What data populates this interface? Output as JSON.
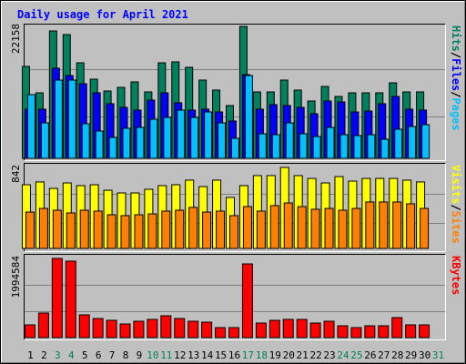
{
  "chart_data": [
    {
      "type": "bar",
      "title": "Daily usage for April 2021",
      "legend_separator": "/",
      "ylim": [
        0,
        22158
      ],
      "yticks": [
        22158
      ],
      "series": [
        {
          "name": "Hits",
          "color": "#00805c",
          "values": [
            15434,
            11002,
            21394,
            20783,
            16045,
            13295,
            11308,
            11920,
            12836,
            11155,
            16045,
            16198,
            15282,
            13142,
            11461,
            8863,
            22158,
            11155,
            11155,
            13142,
            11461,
            9627,
            12072,
            10391,
            11002,
            11002,
            11002,
            12683,
            11155,
            11155,
            null
          ]
        },
        {
          "name": "Files",
          "color": "#0000ff",
          "values": [
            8252,
            8252,
            15129,
            13906,
            12531,
            11002,
            9169,
            8558,
            8099,
            9780,
            11002,
            9322,
            8099,
            8252,
            7794,
            6265,
            14059,
            8252,
            9016,
            8863,
            8558,
            7488,
            9627,
            9475,
            7794,
            7946,
            9169,
            10391,
            8252,
            8099,
            null
          ]
        },
        {
          "name": "Pages",
          "color": "#00c0ff",
          "values": [
            10697,
            5960,
            13142,
            13142,
            5807,
            4584,
            3515,
            5043,
            5196,
            6571,
            6877,
            8099,
            6877,
            7794,
            5960,
            3362,
            13906,
            4126,
            3973,
            5960,
            4126,
            3667,
            5196,
            3973,
            3820,
            3973,
            3209,
            4890,
            5349,
            5654,
            null
          ]
        }
      ]
    },
    {
      "type": "bar",
      "legend_separator": "/",
      "ylim": [
        0,
        842
      ],
      "yticks": [
        842
      ],
      "series": [
        {
          "name": "Visits",
          "color": "#ffff00",
          "values": [
            662,
            691,
            624,
            681,
            653,
            662,
            605,
            577,
            577,
            615,
            653,
            662,
            710,
            643,
            710,
            530,
            653,
            757,
            757,
            842,
            757,
            728,
            681,
            747,
            700,
            728,
            728,
            728,
            710,
            691,
            null
          ]
        },
        {
          "name": "Sites",
          "color": "#ff8000",
          "values": [
            378,
            416,
            397,
            369,
            397,
            388,
            350,
            341,
            350,
            359,
            388,
            397,
            426,
            378,
            388,
            341,
            435,
            388,
            445,
            473,
            435,
            407,
            416,
            397,
            416,
            483,
            483,
            483,
            464,
            416,
            null
          ]
        }
      ]
    },
    {
      "type": "bar",
      "ylim": [
        0,
        1994584
      ],
      "yticks": [
        1994584
      ],
      "categories": [
        "1",
        "2",
        "3",
        "4",
        "5",
        "6",
        "7",
        "8",
        "9",
        "10",
        "11",
        "12",
        "13",
        "14",
        "15",
        "16",
        "17",
        "18",
        "19",
        "20",
        "21",
        "22",
        "23",
        "24",
        "25",
        "26",
        "27",
        "28",
        "29",
        "30",
        "31"
      ],
      "category_colors": [
        "#000000",
        "#000000",
        "#00805c",
        "#00805c",
        "#000000",
        "#000000",
        "#000000",
        "#000000",
        "#000000",
        "#00805c",
        "#00805c",
        "#000000",
        "#000000",
        "#000000",
        "#000000",
        "#000000",
        "#00805c",
        "#00805c",
        "#000000",
        "#000000",
        "#000000",
        "#000000",
        "#000000",
        "#00805c",
        "#00805c",
        "#000000",
        "#000000",
        "#000000",
        "#000000",
        "#000000",
        "#00805c"
      ],
      "series": [
        {
          "name": "KBytes",
          "color": "#ff0000",
          "values": [
            320967,
            619012,
            1994584,
            1925806,
            573159,
            481454,
            435600,
            343894,
            412672,
            458527,
            550232,
            481454,
            412672,
            389745,
            252188,
            252188,
            1857027,
            366821,
            435600,
            458527,
            458527,
            366821,
            412672,
            298041,
            252188,
            298041,
            298041,
            504381,
            320967,
            320967,
            null
          ]
        }
      ]
    }
  ]
}
